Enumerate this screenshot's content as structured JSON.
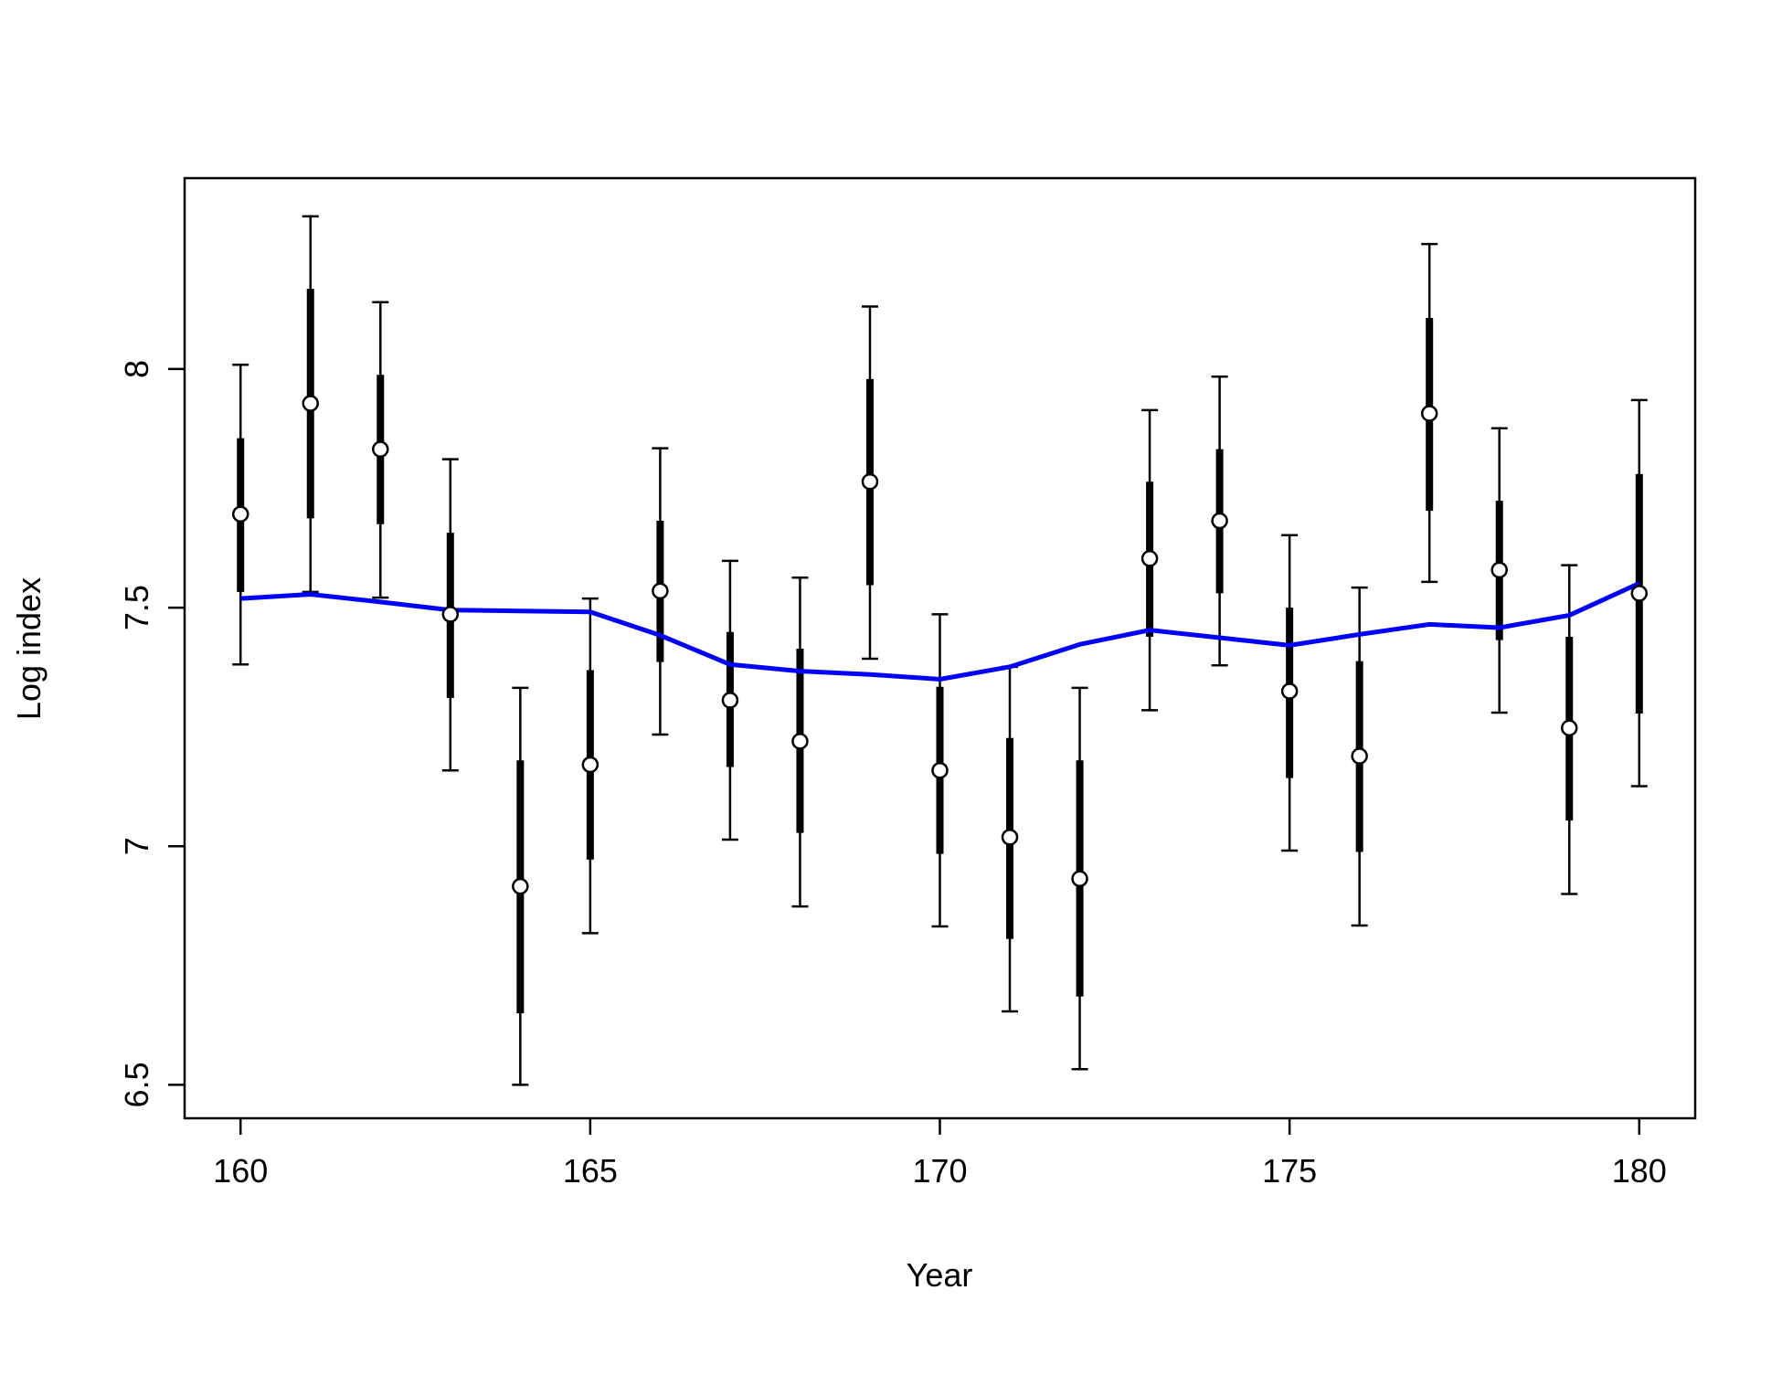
{
  "chart_data": {
    "type": "errorbar",
    "x_label": "Year",
    "y_label": "Log index",
    "x": [
      160,
      161,
      162,
      163,
      164,
      165,
      166,
      167,
      168,
      169,
      170,
      171,
      172,
      173,
      174,
      175,
      176,
      177,
      178,
      179,
      180
    ],
    "values": [
      7.696,
      7.928,
      7.832,
      7.486,
      6.916,
      7.171,
      7.535,
      7.306,
      7.22,
      7.764,
      7.159,
      7.019,
      6.932,
      7.603,
      7.682,
      7.325,
      7.189,
      7.907,
      7.579,
      7.248,
      7.53
    ],
    "inner_low": [
      7.533,
      7.687,
      7.675,
      7.311,
      6.65,
      6.972,
      7.386,
      7.166,
      7.028,
      7.547,
      6.984,
      6.806,
      6.685,
      7.439,
      7.53,
      7.143,
      6.988,
      7.703,
      7.432,
      7.054,
      7.278
    ],
    "inner_high": [
      7.855,
      8.168,
      7.988,
      7.657,
      7.18,
      7.369,
      7.682,
      7.449,
      7.414,
      7.979,
      7.334,
      7.227,
      7.18,
      7.764,
      7.832,
      7.5,
      7.388,
      8.107,
      7.724,
      7.439,
      7.78
    ],
    "outer_low": [
      7.381,
      7.533,
      7.521,
      7.159,
      6.5,
      6.818,
      7.234,
      7.014,
      6.874,
      7.393,
      6.832,
      6.654,
      6.533,
      7.285,
      7.379,
      6.991,
      6.834,
      7.554,
      7.28,
      6.9,
      7.126
    ],
    "outer_high": [
      8.009,
      8.32,
      8.14,
      7.811,
      7.332,
      7.519,
      7.834,
      7.598,
      7.563,
      8.131,
      7.486,
      7.376,
      7.332,
      7.914,
      7.984,
      7.652,
      7.542,
      8.262,
      7.876,
      7.589,
      7.935
    ],
    "fit": [
      7.519,
      7.528,
      7.512,
      7.495,
      7.493,
      7.491,
      7.442,
      7.381,
      7.367,
      7.36,
      7.35,
      7.376,
      7.423,
      7.453,
      7.437,
      7.421,
      7.444,
      7.465,
      7.458,
      7.484,
      7.551
    ],
    "fit_color": "#0000ff",
    "point_color": "#000000",
    "xlim": [
      159.2,
      180.8
    ],
    "ylim": [
      6.43,
      8.4
    ],
    "xticks": [
      160,
      165,
      170,
      175,
      180
    ],
    "yticks": [
      6.5,
      7.0,
      7.5,
      8.0
    ]
  }
}
